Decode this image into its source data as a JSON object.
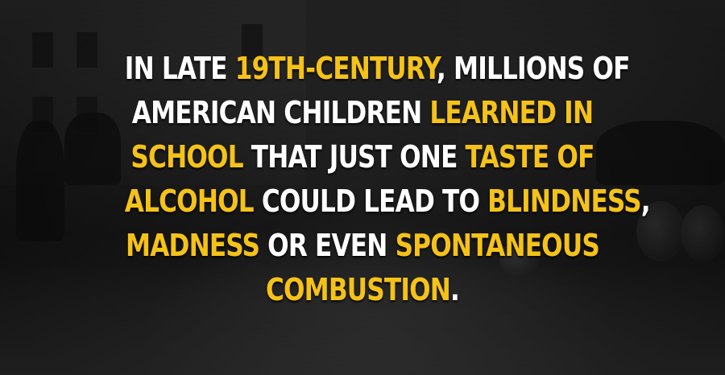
{
  "caption": {
    "lines": [
      [
        {
          "text": "IN LATE ",
          "highlight": false
        },
        {
          "text": "19TH-CENTURY",
          "highlight": true
        },
        {
          "text": ", MILLIONS OF",
          "highlight": false
        }
      ],
      [
        {
          "text": "AMERICAN CHILDREN ",
          "highlight": false
        },
        {
          "text": "LEARNED IN",
          "highlight": true
        }
      ],
      [
        {
          "text": "SCHOOL",
          "highlight": true
        },
        {
          "text": " THAT JUST ONE ",
          "highlight": false
        },
        {
          "text": "TASTE OF",
          "highlight": true
        }
      ],
      [
        {
          "text": "ALCOHOL",
          "highlight": true
        },
        {
          "text": " COULD LEAD TO ",
          "highlight": false
        },
        {
          "text": "BLINDNESS",
          "highlight": true
        },
        {
          "text": ",",
          "highlight": false
        }
      ],
      [
        {
          "text": "MADNESS",
          "highlight": true
        },
        {
          "text": " OR EVEN ",
          "highlight": false
        },
        {
          "text": "SPONTANEOUS",
          "highlight": true
        }
      ],
      [
        {
          "text": "COMBUSTION",
          "highlight": true
        },
        {
          "text": ".",
          "highlight": false
        }
      ]
    ]
  },
  "colors": {
    "text": "#ffffff",
    "highlight": "#f5c218",
    "background": "#262626"
  },
  "background_image": "black-and-white-photo-crowd-with-barrels-icon"
}
